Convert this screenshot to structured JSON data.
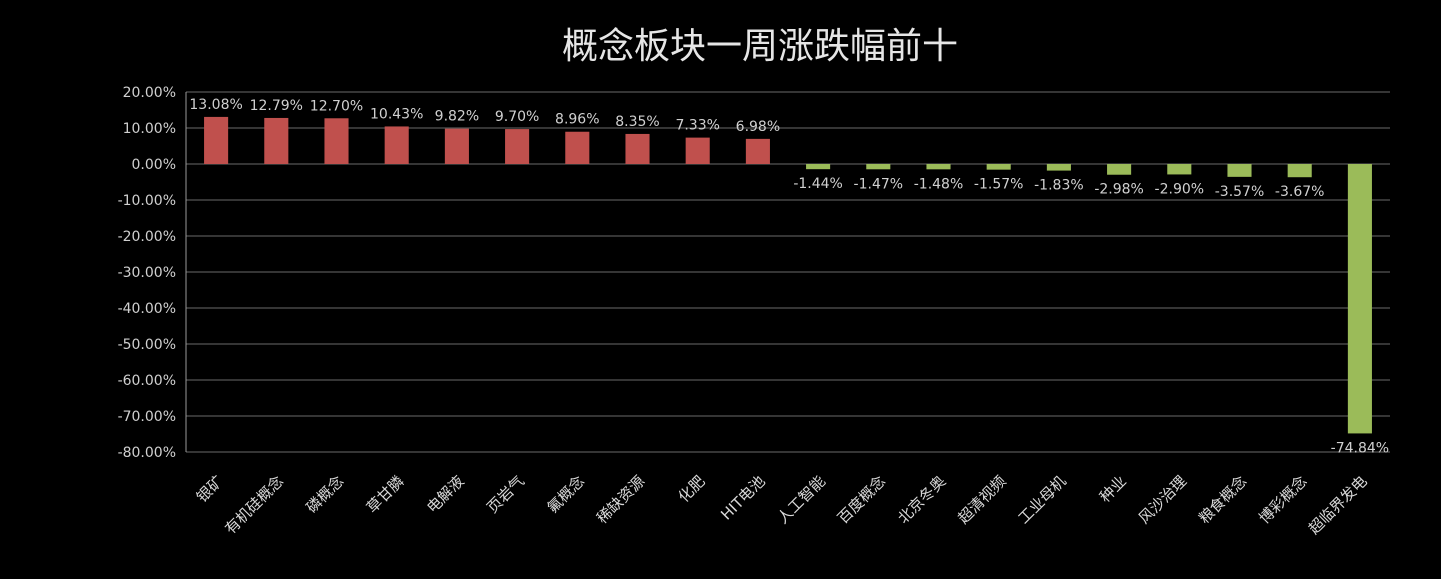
{
  "chart_data": {
    "type": "bar",
    "title": "概念板块一周涨跌幅前十",
    "categories": [
      "银矿",
      "有机硅概念",
      "磷概念",
      "草甘膦",
      "电解液",
      "页岩气",
      "氟概念",
      "稀缺资源",
      "化肥",
      "HIT电池",
      "人工智能",
      "百度概念",
      "北京冬奥",
      "超清视频",
      "工业母机",
      "种业",
      "风沙治理",
      "粮食概念",
      "博彩概念",
      "超临界发电"
    ],
    "values": [
      13.08,
      12.79,
      12.7,
      10.43,
      9.82,
      9.7,
      8.96,
      8.35,
      7.33,
      6.98,
      -1.44,
      -1.47,
      -1.48,
      -1.57,
      -1.83,
      -2.98,
      -2.9,
      -3.57,
      -3.67,
      -74.84
    ],
    "data_labels": [
      "13.08%",
      "12.79%",
      "12.70%",
      "10.43%",
      "9.82%",
      "9.70%",
      "8.96%",
      "8.35%",
      "7.33%",
      "6.98%",
      "-1.44%",
      "-1.47%",
      "-1.48%",
      "-1.57%",
      "-1.83%",
      "-2.98%",
      "-2.90%",
      "-3.57%",
      "-3.67%",
      "-74.84%"
    ],
    "y_ticks": [
      "20.00%",
      "10.00%",
      "0.00%",
      "-10.00%",
      "-20.00%",
      "-30.00%",
      "-40.00%",
      "-50.00%",
      "-60.00%",
      "-70.00%",
      "-80.00%"
    ],
    "ylim": [
      -80,
      20
    ],
    "grid": true,
    "legend": "none",
    "colors": {
      "positive": "#c0504d",
      "negative": "#9bbb59",
      "background": "#000000"
    }
  }
}
